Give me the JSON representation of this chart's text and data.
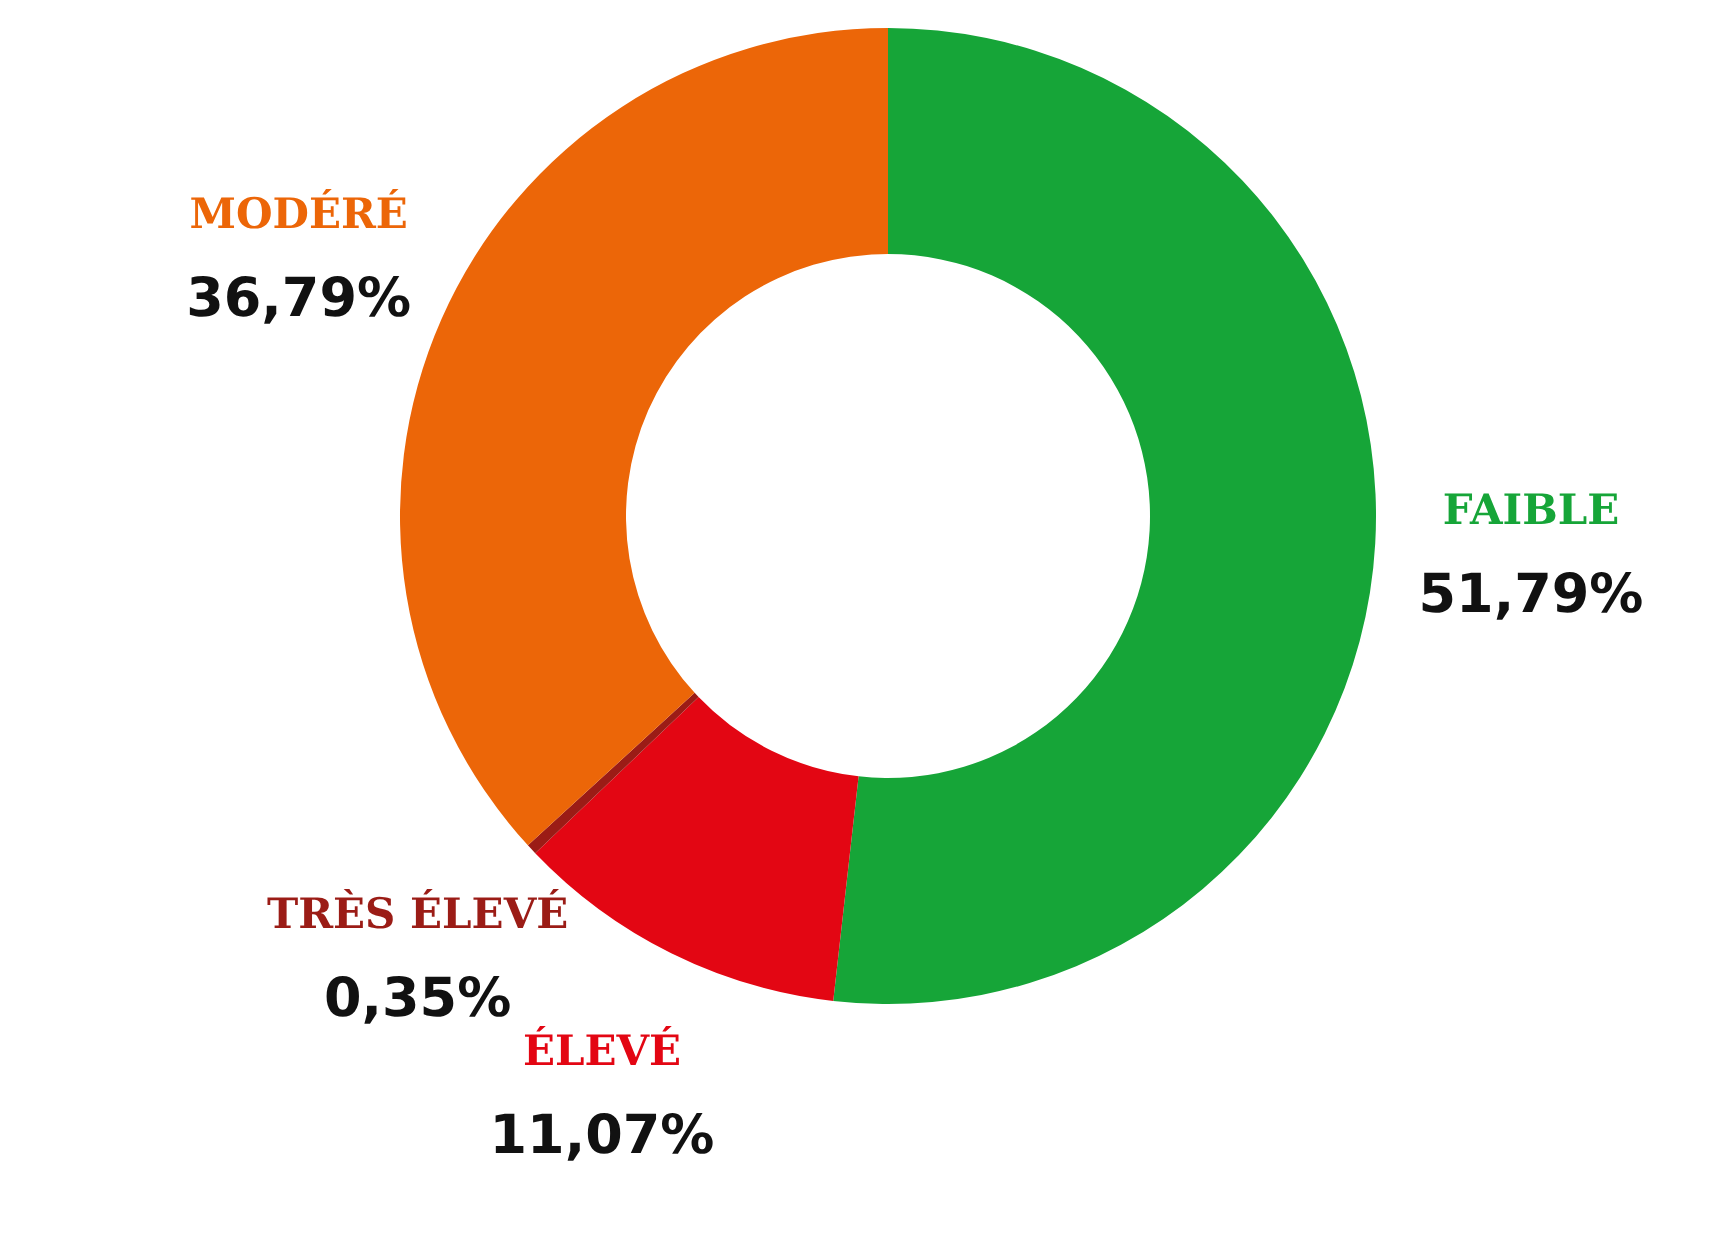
{
  "chart_data": {
    "type": "donut",
    "categories": [
      "FAIBLE",
      "ÉLEVÉ",
      "TRÈS ÉLEVÉ",
      "MODÉRÉ"
    ],
    "values": [
      51.79,
      11.07,
      0.35,
      36.79
    ],
    "value_labels": [
      "51,79%",
      "11,07%",
      "0,35%",
      "36,79%"
    ],
    "colors": [
      "#16a538",
      "#e30613",
      "#9b1c16",
      "#ec6608"
    ]
  }
}
